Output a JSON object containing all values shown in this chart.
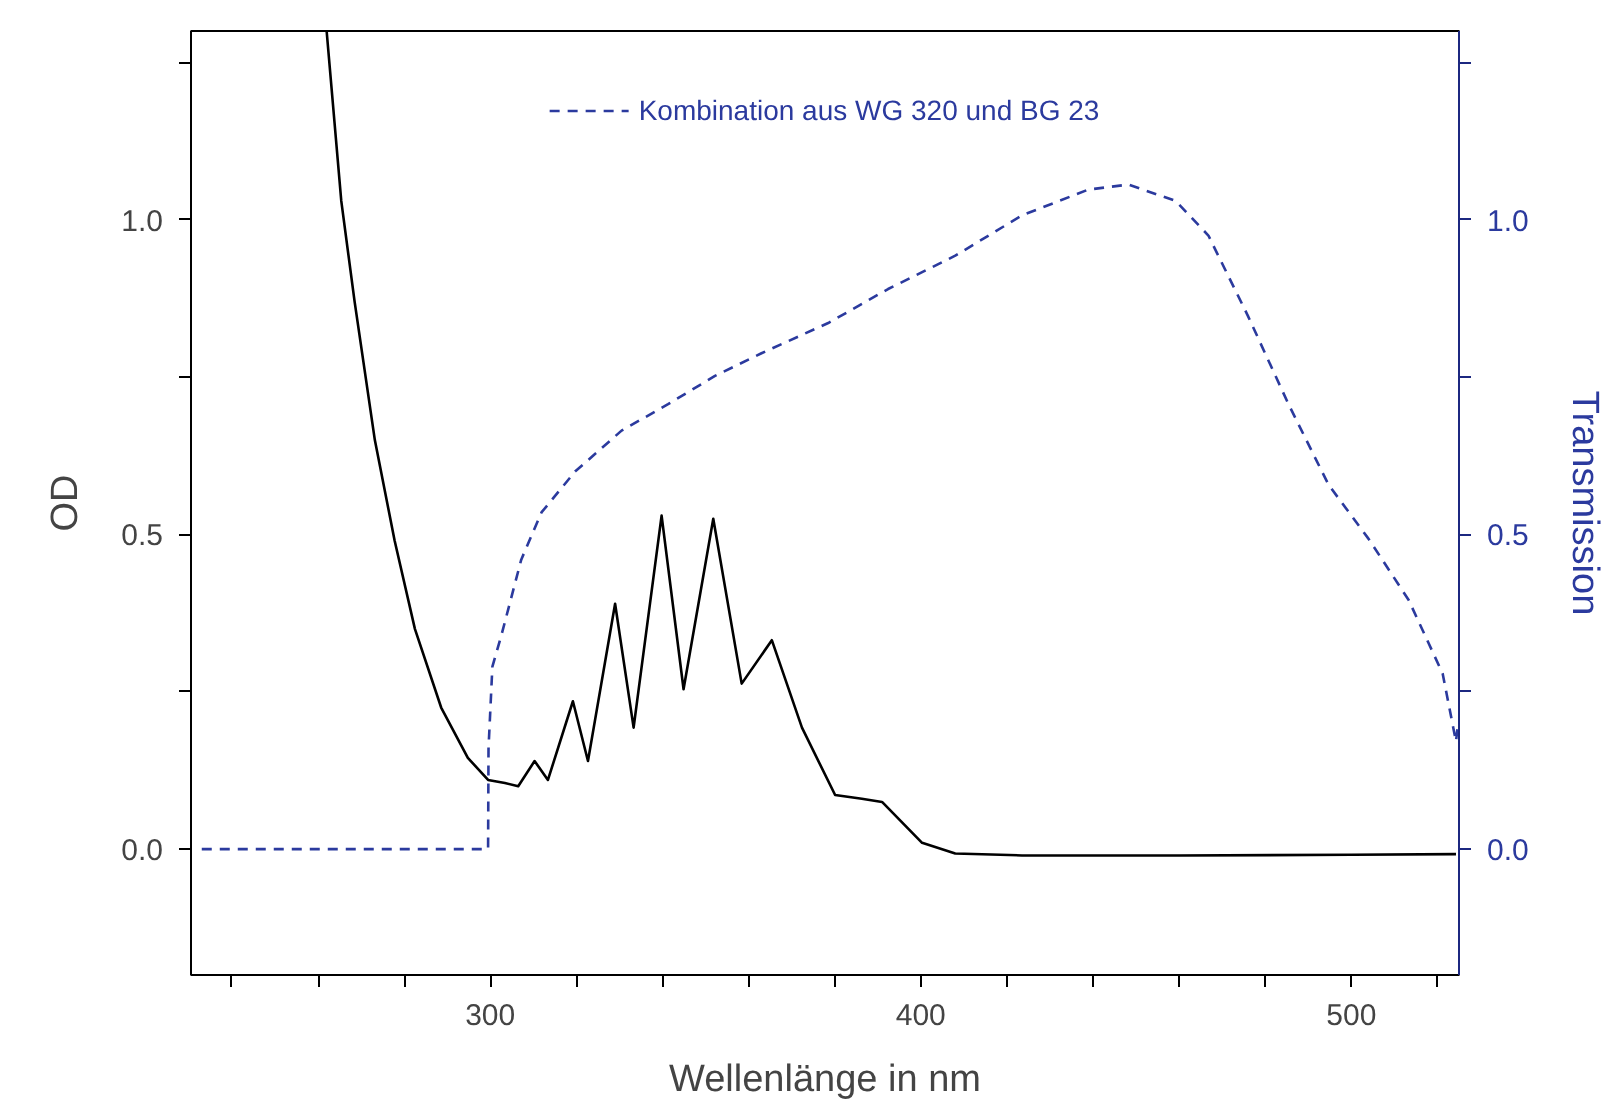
{
  "chart_data": {
    "type": "line",
    "xlabel": "Wellenlänge in nm",
    "ylabel": "OD",
    "y2label": "Transmission",
    "xlim": [
      230.5,
      525
    ],
    "xticks": [
      {
        "value": 240,
        "label": null
      },
      {
        "value": 260,
        "label": null
      },
      {
        "value": 280,
        "label": null
      },
      300,
      {
        "value": 320,
        "label": null
      },
      {
        "value": 340,
        "label": null
      },
      {
        "value": 360,
        "label": null
      },
      {
        "value": 380,
        "label": null
      },
      400,
      {
        "value": 420,
        "label": null
      },
      {
        "value": 440,
        "label": null
      },
      {
        "value": 460,
        "label": null
      },
      {
        "value": 480,
        "label": null
      },
      500,
      {
        "value": 520,
        "label": null
      }
    ],
    "ylim": [
      -0.2,
      1.3
    ],
    "yticks": [
      {
        "value": 0,
        "label": "0.0"
      },
      {
        "value": 0.25,
        "label": null
      },
      0.5,
      {
        "value": 0.75,
        "label": null
      },
      {
        "value": 1,
        "label": "1.0"
      },
      {
        "value": 1.25,
        "label": null
      }
    ],
    "y2lim": [
      -0.2,
      1.3
    ],
    "y2ticks": [
      {
        "value": 0,
        "label": "0.0"
      },
      {
        "value": 0.25,
        "label": null
      },
      0.5,
      {
        "value": 0.75,
        "label": null
      },
      {
        "value": 1,
        "label": "1.0"
      },
      {
        "value": 1.25,
        "label": null
      }
    ],
    "grid": false,
    "legend": "top",
    "marker": "none",
    "series": [
      {
        "color": "#000000",
        "line_style": "solid",
        "x": [
          262,
          265.4,
          268.5,
          273.2,
          277.8,
          282.5,
          288.6,
          294.8,
          299.5,
          303.4,
          306.5,
          310.3,
          313.4,
          319.2,
          322.7,
          329,
          333.3,
          339.8,
          344.9,
          351.8,
          358.4,
          365.4,
          372.4,
          380.1,
          386.3,
          391,
          400.3,
          408,
          423.5,
          460,
          500,
          524.3
        ],
        "values": [
          1.3,
          1.03,
          0.87,
          0.65,
          0.49,
          0.35,
          0.225,
          0.145,
          0.11,
          0.105,
          0.1,
          0.14,
          0.11,
          0.235,
          0.14,
          0.39,
          0.193,
          0.53,
          0.254,
          0.525,
          0.263,
          0.332,
          0.193,
          0.086,
          0.08,
          0.075,
          0.01,
          -0.007,
          -0.01,
          -0.01,
          -0.009,
          -0.008
        ]
      },
      {
        "name": "Kombination aus WG 320 und BG 23",
        "color": "#2b3a9e",
        "line_style": "dashed",
        "axis": "y2",
        "x": [
          233,
          299.5,
          299.6,
          300.5,
          302.6,
          307.2,
          311.9,
          319.7,
          330.5,
          341.3,
          352.2,
          363,
          378.5,
          392.4,
          408,
          423.5,
          438.9,
          448.2,
          459.2,
          466.8,
          476,
          485.4,
          494.7,
          504,
          513.3,
          521.2,
          524.3,
          524.8
        ],
        "values": [
          0,
          0,
          0.16,
          0.29,
          0.34,
          0.46,
          0.535,
          0.6,
          0.665,
          0.707,
          0.752,
          0.788,
          0.836,
          0.89,
          0.943,
          1.007,
          1.048,
          1.056,
          1.03,
          0.975,
          0.847,
          0.707,
          0.579,
          0.493,
          0.396,
          0.279,
          0.171,
          0.2
        ]
      }
    ]
  }
}
